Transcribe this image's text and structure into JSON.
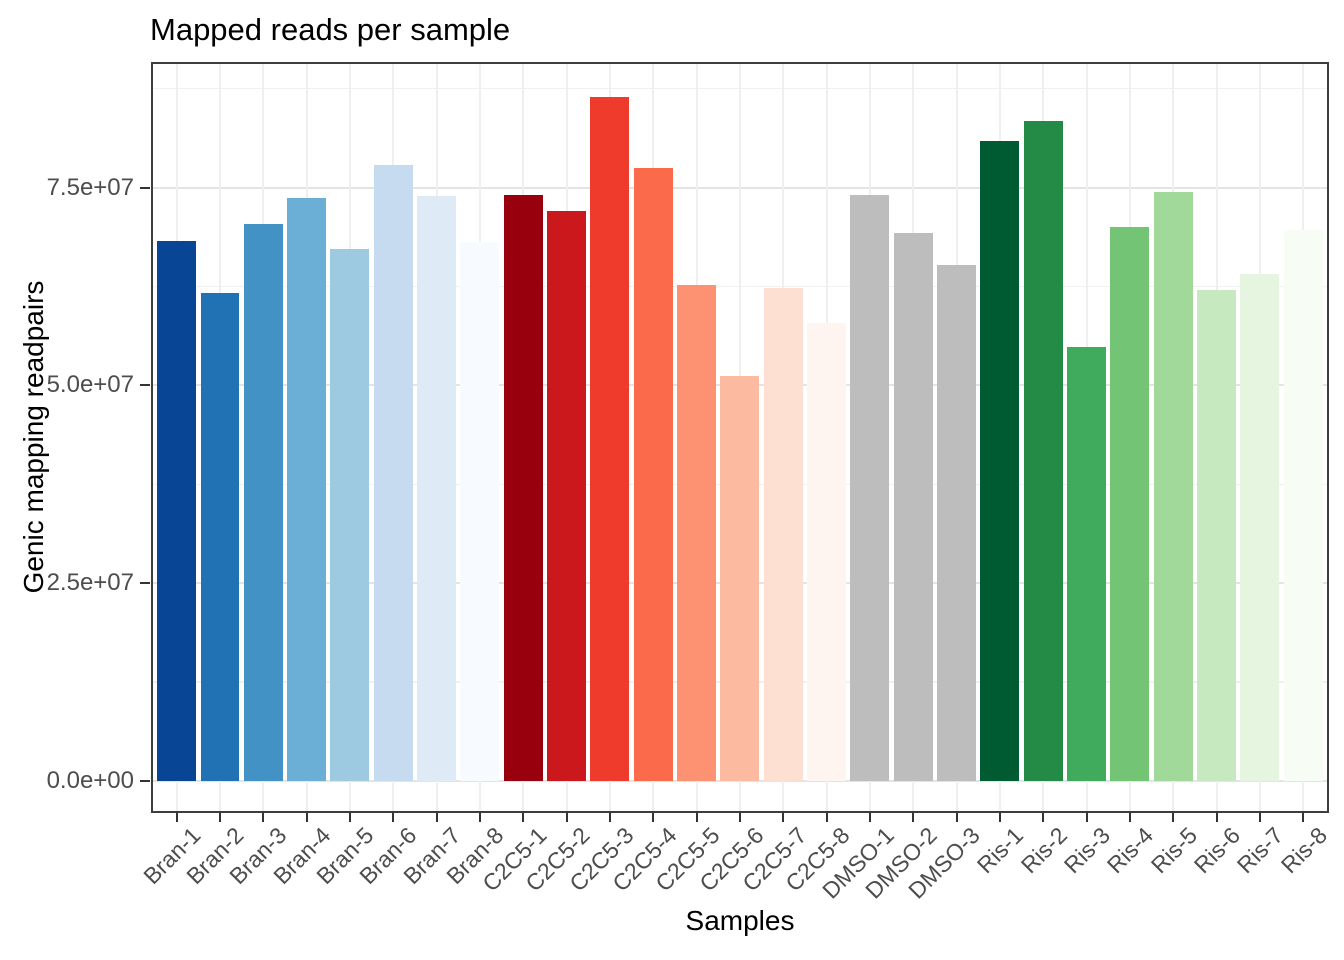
{
  "title": "Mapped reads per sample",
  "chart_data": {
    "type": "bar",
    "title": "Mapped reads per sample",
    "xlabel": "Samples",
    "ylabel": "Genic mapping readpairs",
    "legend": "none",
    "grid": true,
    "ylim": [
      0,
      91000000
    ],
    "y_ticks": [
      {
        "value": 0,
        "label": "0.0e+00"
      },
      {
        "value": 25000000,
        "label": "2.5e+07"
      },
      {
        "value": 50000000,
        "label": "5.0e+07"
      },
      {
        "value": 75000000,
        "label": "7.5e+07"
      }
    ],
    "y_minor_ticks": [
      12500000,
      37500000,
      62500000,
      87500000
    ],
    "categories": [
      "Bran-1",
      "Bran-2",
      "Bran-3",
      "Bran-4",
      "Bran-5",
      "Bran-6",
      "Bran-7",
      "Bran-8",
      "C2C5-1",
      "C2C5-2",
      "C2C5-3",
      "C2C5-4",
      "C2C5-5",
      "C2C5-6",
      "C2C5-7",
      "C2C5-8",
      "DMSO-1",
      "DMSO-2",
      "DMSO-3",
      "Ris-1",
      "Ris-2",
      "Ris-3",
      "Ris-4",
      "Ris-5",
      "Ris-6",
      "Ris-7",
      "Ris-8"
    ],
    "values": [
      68300000,
      61700000,
      70400000,
      73700000,
      67200000,
      77900000,
      73900000,
      68100000,
      74100000,
      72000000,
      86500000,
      77500000,
      62700000,
      51200000,
      62300000,
      57900000,
      74100000,
      69300000,
      65200000,
      80900000,
      83400000,
      54900000,
      70000000,
      74400000,
      62100000,
      64100000,
      69600000
    ],
    "bar_colors": [
      "#084594",
      "#2171B5",
      "#4292C6",
      "#6BAED6",
      "#9ECAE1",
      "#C6DBEF",
      "#DEEBF7",
      "#F7FBFF",
      "#99000D",
      "#CB181D",
      "#EF3B2C",
      "#FB6A4A",
      "#FC9272",
      "#FCBBA1",
      "#FEE0D2",
      "#FFF5F0",
      "#BDBDBD",
      "#BDBDBD",
      "#BDBDBD",
      "#005A32",
      "#238B45",
      "#41AB5D",
      "#74C476",
      "#A1D99B",
      "#C7E9C0",
      "#E5F5E0",
      "#F7FCF5"
    ],
    "groups": [
      {
        "name": "Bran",
        "samples": 8,
        "palette": "Blues (dark to light)"
      },
      {
        "name": "C2C5",
        "samples": 8,
        "palette": "Reds (dark to light)"
      },
      {
        "name": "DMSO",
        "samples": 3,
        "palette": "Grey"
      },
      {
        "name": "Ris",
        "samples": 8,
        "palette": "Greens (dark to light)"
      }
    ]
  },
  "colors": {
    "background": "#FFFFFF",
    "panel_border": "#3D3D3D",
    "grid_major": "#E4E4E4",
    "grid_minor": "#F1F1F1",
    "grid_vertical": "#EFEFEF",
    "tick_mark": "#333333",
    "axis_text": "#4D4D4D",
    "axis_title": "#000000",
    "title_text": "#000000"
  }
}
